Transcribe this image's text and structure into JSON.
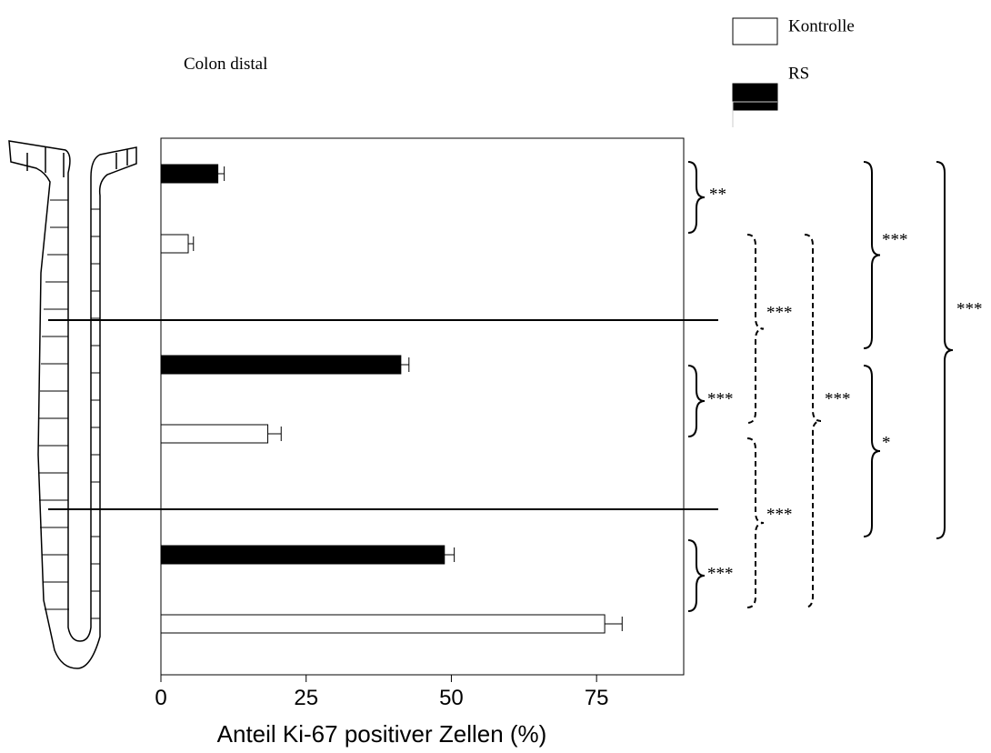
{
  "chart_data": {
    "type": "bar",
    "orientation": "horizontal",
    "title": "Colon distal",
    "x_label": "Anteil Ki-67 positiver Zellen (%)",
    "categories": [
      null,
      null,
      null
    ],
    "series": [
      {
        "name": "RS",
        "color": "#000000",
        "values": [
          9.8,
          41.3,
          48.8
        ],
        "errors": [
          1.1,
          1.4,
          1.7
        ]
      },
      {
        "name": "Kontrolle",
        "color": "#ffffff",
        "values": [
          4.7,
          18.4,
          76.4
        ],
        "errors": [
          0.9,
          2.3,
          3.0
        ]
      }
    ],
    "xlim": [
      0,
      90
    ],
    "xticks": [
      0,
      25,
      50,
      75
    ],
    "annotations": [
      {
        "text": "**"
      },
      {
        "text": "***"
      },
      {
        "text": "***"
      },
      {
        "text": "***"
      },
      {
        "text": "***"
      },
      {
        "text": "***"
      },
      {
        "text": "***"
      },
      {
        "text": "*"
      },
      {
        "text": "***"
      }
    ]
  }
}
